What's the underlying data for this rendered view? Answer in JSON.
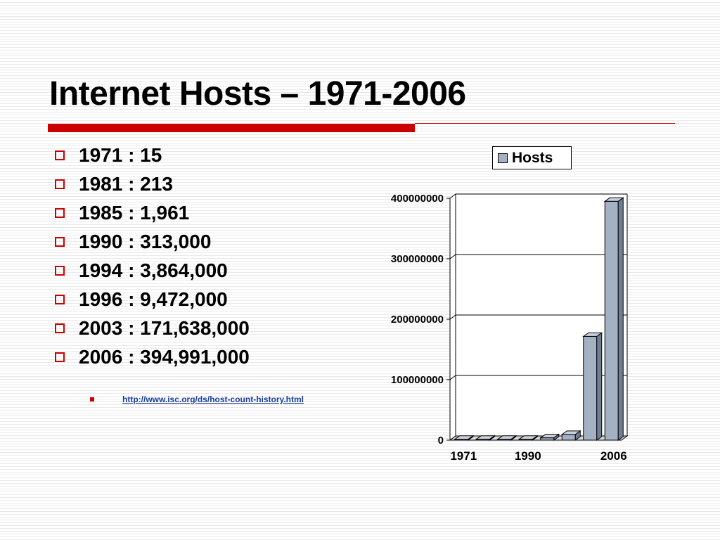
{
  "slide": {
    "title": "Internet Hosts – 1971-2006",
    "bullets": [
      "1971 : 15",
      "1981 : 213",
      "1985 : 1,961",
      "1990 : 313,000",
      "1994 : 3,864,000",
      "1996 : 9,472,000",
      "2003 : 171,638,000",
      "2006 : 394,991,000"
    ],
    "source_link": "http://www.isc.org/ds/host-count-history.html"
  },
  "colors": {
    "accent": "#cc0000",
    "bar_face": "#a3b1c3",
    "bar_top": "#c9d2de",
    "bar_side": "#6f7f93",
    "link": "#1a3c9e"
  },
  "chart_data": {
    "type": "bar",
    "legend": {
      "position": "top-right",
      "entries": [
        "Hosts"
      ]
    },
    "categories": [
      "1971",
      "1981",
      "1985",
      "1990",
      "1994",
      "1996",
      "2003",
      "2006"
    ],
    "x_tick_labels": [
      "1971",
      "1990",
      "2006"
    ],
    "series": [
      {
        "name": "Hosts",
        "values": [
          15,
          213,
          1961,
          313000,
          3864000,
          9472000,
          171638000,
          394991000
        ]
      }
    ],
    "y_ticks": [
      "0",
      "100000000",
      "200000000",
      "300000000",
      "400000000"
    ],
    "ylim": [
      0,
      400000000
    ],
    "grid": true,
    "style": "3d"
  }
}
